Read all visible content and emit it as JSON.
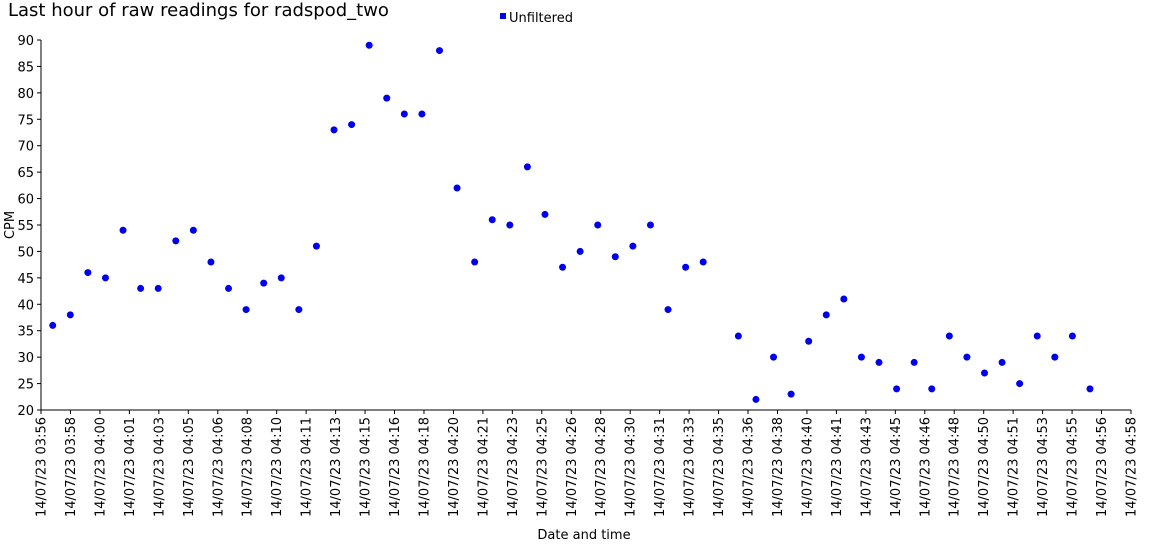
{
  "chart_data": {
    "type": "scatter",
    "title": "Last hour of raw readings for radspod_two",
    "xlabel": "Date and time",
    "ylabel": "CPM",
    "ylim": [
      20,
      90
    ],
    "yticks": [
      20,
      25,
      30,
      35,
      40,
      45,
      50,
      55,
      60,
      65,
      70,
      75,
      80,
      85,
      90
    ],
    "xlim": [
      "14/07/23 03:56",
      "14/07/23 04:58"
    ],
    "xtick_labels": [
      "14/07/23 03:56",
      "14/07/23 03:58",
      "14/07/23 04:00",
      "14/07/23 04:01",
      "14/07/23 04:03",
      "14/07/23 04:05",
      "14/07/23 04:06",
      "14/07/23 04:08",
      "14/07/23 04:10",
      "14/07/23 04:11",
      "14/07/23 04:13",
      "14/07/23 04:15",
      "14/07/23 04:16",
      "14/07/23 04:18",
      "14/07/23 04:20",
      "14/07/23 04:21",
      "14/07/23 04:23",
      "14/07/23 04:25",
      "14/07/23 04:26",
      "14/07/23 04:28",
      "14/07/23 04:30",
      "14/07/23 04:31",
      "14/07/23 04:33",
      "14/07/23 04:35",
      "14/07/23 04:36",
      "14/07/23 04:38",
      "14/07/23 04:40",
      "14/07/23 04:41",
      "14/07/23 04:43",
      "14/07/23 04:45",
      "14/07/23 04:46",
      "14/07/23 04:48",
      "14/07/23 04:50",
      "14/07/23 04:51",
      "14/07/23 04:53",
      "14/07/23 04:55",
      "14/07/23 04:56",
      "14/07/23 04:58"
    ],
    "legend": {
      "position": "top-center",
      "entries": [
        "Unfiltered"
      ]
    },
    "grid": false,
    "series": [
      {
        "name": "Unfiltered",
        "color": "#0000ee",
        "x": [
          "14/07/23 03:56:40",
          "14/07/23 03:57:40",
          "14/07/23 03:58:40",
          "14/07/23 03:59:40",
          "14/07/23 04:00:40",
          "14/07/23 04:01:40",
          "14/07/23 04:02:40",
          "14/07/23 04:03:40",
          "14/07/23 04:04:40",
          "14/07/23 04:05:40",
          "14/07/23 04:06:40",
          "14/07/23 04:07:40",
          "14/07/23 04:08:40",
          "14/07/23 04:09:40",
          "14/07/23 04:10:40",
          "14/07/23 04:11:40",
          "14/07/23 04:12:40",
          "14/07/23 04:13:40",
          "14/07/23 04:14:40",
          "14/07/23 04:15:40",
          "14/07/23 04:16:40",
          "14/07/23 04:17:40",
          "14/07/23 04:18:40",
          "14/07/23 04:19:40",
          "14/07/23 04:20:40",
          "14/07/23 04:21:40",
          "14/07/23 04:22:40",
          "14/07/23 04:23:40",
          "14/07/23 04:24:40",
          "14/07/23 04:25:40",
          "14/07/23 04:26:40",
          "14/07/23 04:27:40",
          "14/07/23 04:28:40",
          "14/07/23 04:29:40",
          "14/07/23 04:30:40",
          "14/07/23 04:31:40",
          "14/07/23 04:32:40",
          "14/07/23 04:33:40",
          "14/07/23 04:35:40",
          "14/07/23 04:36:40",
          "14/07/23 04:37:40",
          "14/07/23 04:38:40",
          "14/07/23 04:39:40",
          "14/07/23 04:40:40",
          "14/07/23 04:41:40",
          "14/07/23 04:42:40",
          "14/07/23 04:43:40",
          "14/07/23 04:44:40",
          "14/07/23 04:45:40",
          "14/07/23 04:46:40",
          "14/07/23 04:47:40",
          "14/07/23 04:48:40",
          "14/07/23 04:49:40",
          "14/07/23 04:50:40",
          "14/07/23 04:51:40",
          "14/07/23 04:52:40",
          "14/07/23 04:53:40",
          "14/07/23 04:54:40",
          "14/07/23 04:55:40"
        ],
        "y": [
          36,
          38,
          46,
          45,
          54,
          43,
          43,
          52,
          54,
          48,
          43,
          39,
          44,
          45,
          39,
          51,
          73,
          74,
          89,
          79,
          76,
          76,
          88,
          62,
          48,
          56,
          55,
          66,
          57,
          47,
          50,
          55,
          49,
          51,
          55,
          39,
          47,
          48,
          34,
          22,
          30,
          23,
          33,
          38,
          41,
          30,
          29,
          24,
          29,
          24,
          34,
          30,
          27,
          29,
          25,
          34,
          30,
          34,
          24
        ]
      }
    ]
  }
}
